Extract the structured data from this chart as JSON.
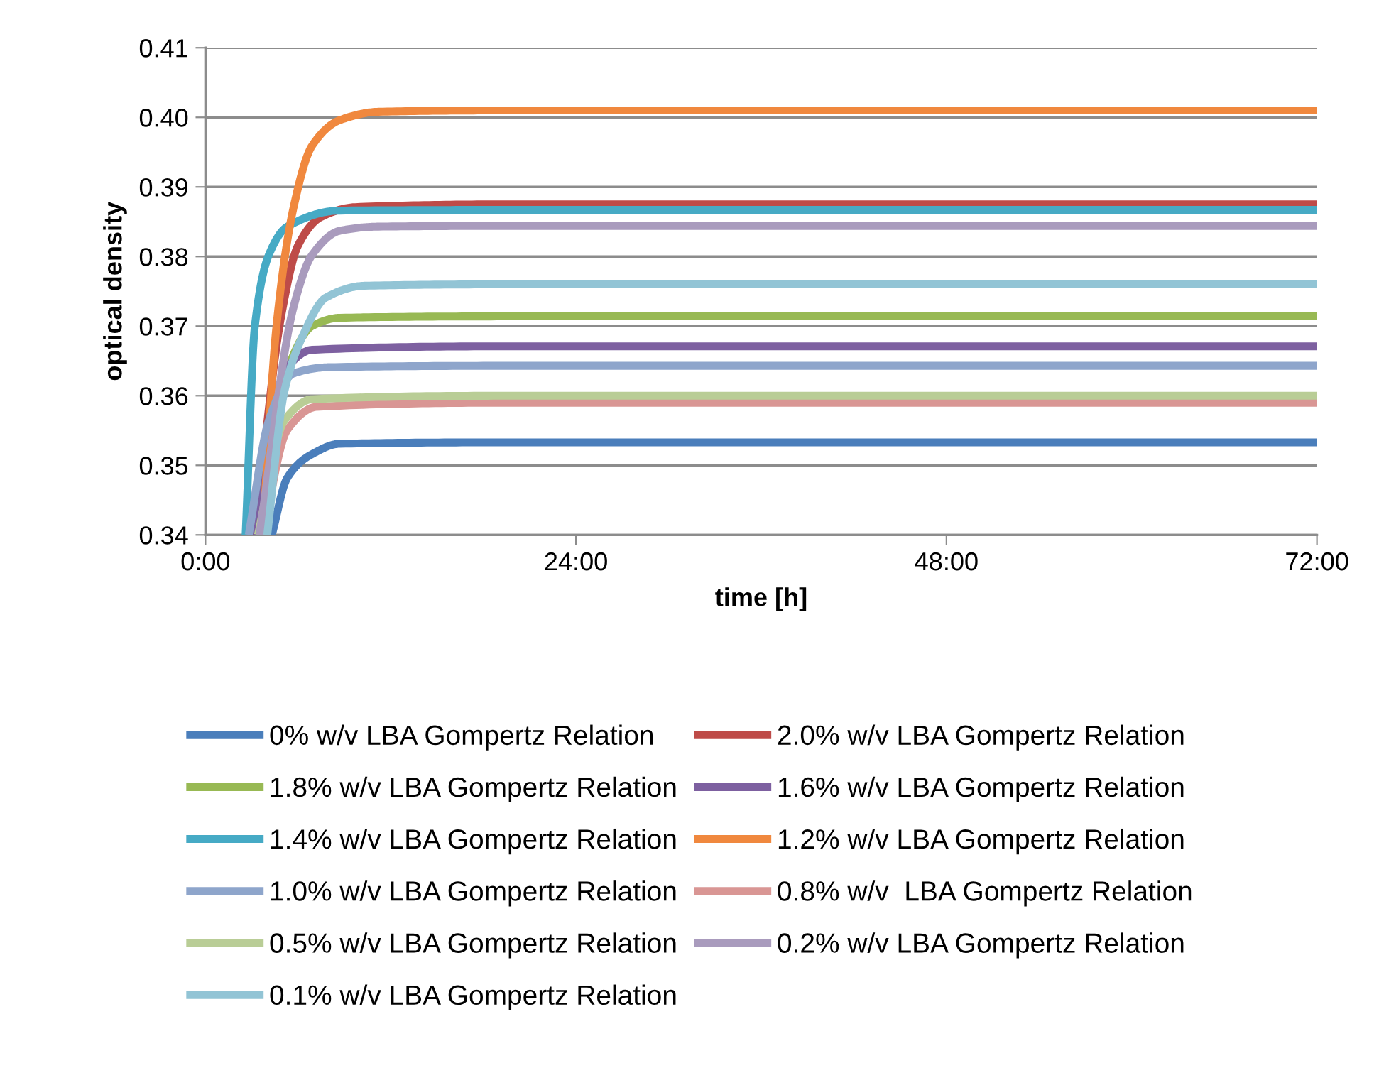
{
  "chart_data": {
    "type": "line",
    "xlabel": "time [h]",
    "ylabel": "optical density",
    "xlim": [
      0,
      72
    ],
    "xticks": [
      {
        "value": 0,
        "label": "0:00"
      },
      {
        "value": 24,
        "label": "24:00"
      },
      {
        "value": 48,
        "label": "48:00"
      },
      {
        "value": 72,
        "label": "72:00"
      }
    ],
    "ylim": [
      0.34,
      0.41
    ],
    "yticks": [
      0.34,
      0.35,
      0.36,
      0.37,
      0.38,
      0.39,
      {
        "value": 0.4,
        "label": "0.40"
      },
      0.41
    ],
    "grid": "y",
    "legend": "bottom",
    "marker": "none",
    "line_style": "solid",
    "series": [
      {
        "name": "0% w/v LBA Gompertz Relation",
        "color": "#4a7ebb",
        "x": [
          4.3,
          5.3,
          6.9,
          8.7,
          20,
          72
        ],
        "values": [
          0.34,
          0.3482,
          0.3516,
          0.3531,
          0.3533,
          0.3533
        ]
      },
      {
        "name": "2.0% w/v LBA Gompertz Relation",
        "color": "#be4b48",
        "x": [
          3.2,
          4.9,
          6.0,
          7.5,
          9.7,
          20,
          72
        ],
        "values": [
          0.34,
          0.3714,
          0.3816,
          0.3857,
          0.3871,
          0.3875,
          0.3875
        ]
      },
      {
        "name": "1.8% w/v LBA Gompertz Relation",
        "color": "#98b954",
        "x": [
          3.4,
          5.7,
          6.9,
          8.7,
          20,
          72
        ],
        "values": [
          0.34,
          0.3659,
          0.37,
          0.3712,
          0.3714,
          0.3714
        ]
      },
      {
        "name": "1.6% w/v LBA Gompertz Relation",
        "color": "#7d60a0",
        "x": [
          3.2,
          5.5,
          6.9,
          20,
          72
        ],
        "values": [
          0.34,
          0.3646,
          0.3666,
          0.3671,
          0.3671
        ]
      },
      {
        "name": "1.4% w/v LBA Gompertz Relation",
        "color": "#46aac5",
        "x": [
          2.6,
          3.2,
          4.1,
          5.3,
          8.7,
          20,
          72
        ],
        "values": [
          0.34,
          0.37,
          0.3802,
          0.3843,
          0.3866,
          0.3867,
          0.3867
        ]
      },
      {
        "name": "1.2% w/v LBA Gompertz Relation",
        "color": "#f0883e",
        "x": [
          3.7,
          4.6,
          5.7,
          6.9,
          8.7,
          11.2,
          20,
          72
        ],
        "values": [
          0.34,
          0.37,
          0.387,
          0.3959,
          0.3996,
          0.4008,
          0.401,
          0.401
        ]
      },
      {
        "name": "1.0% w/v LBA Gompertz Relation",
        "color": "#8ea5cb",
        "x": [
          2.8,
          4.1,
          5.7,
          8,
          20,
          72
        ],
        "values": [
          0.34,
          0.3564,
          0.3632,
          0.3641,
          0.3643,
          0.3643
        ]
      },
      {
        "name": "0.8% w/v  LBA Gompertz Relation",
        "color": "#d99694",
        "x": [
          3.7,
          5.3,
          7.2,
          20,
          72
        ],
        "values": [
          0.34,
          0.3551,
          0.3584,
          0.359,
          0.359
        ]
      },
      {
        "name": "0.5% w/v LBA Gompertz Relation",
        "color": "#b9cd96",
        "x": [
          3.4,
          5.1,
          6.9,
          20,
          72
        ],
        "values": [
          0.34,
          0.3564,
          0.3595,
          0.36,
          0.36
        ]
      },
      {
        "name": "0.2% w/v LBA Gompertz Relation",
        "color": "#a99bbd",
        "x": [
          3.5,
          5.7,
          6.9,
          8.7,
          11.2,
          20,
          72
        ],
        "values": [
          0.34,
          0.3727,
          0.3802,
          0.3837,
          0.3843,
          0.3844,
          0.3844
        ]
      },
      {
        "name": "0.1% w/v LBA Gompertz Relation",
        "color": "#92c4d5",
        "x": [
          4.0,
          5.1,
          6.3,
          7.8,
          10.3,
          20,
          72
        ],
        "values": [
          0.34,
          0.3605,
          0.3686,
          0.3741,
          0.3758,
          0.376,
          0.376
        ]
      }
    ]
  }
}
